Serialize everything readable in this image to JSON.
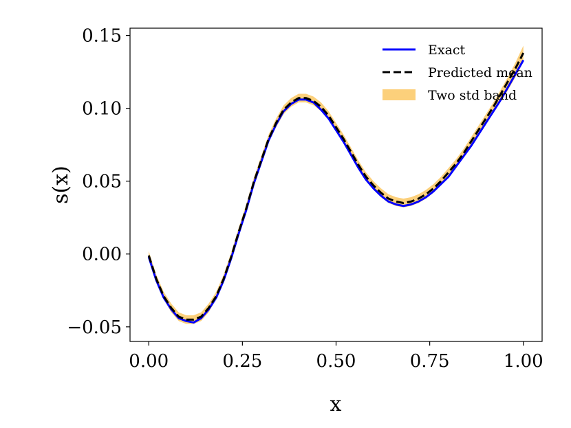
{
  "chart_data": {
    "type": "line",
    "xlabel": "x",
    "ylabel": "s(x)",
    "xlim": [
      -0.05,
      1.05
    ],
    "ylim": [
      -0.06,
      0.155
    ],
    "x_ticks": [
      0.0,
      0.25,
      0.5,
      0.75,
      1.0
    ],
    "x_tick_labels": [
      "0.00",
      "0.25",
      "0.50",
      "0.75",
      "1.00"
    ],
    "y_ticks": [
      -0.05,
      0.0,
      0.05,
      0.1,
      0.15
    ],
    "y_tick_labels": [
      "−0.05",
      "0.00",
      "0.05",
      "0.10",
      "0.15"
    ],
    "grid": false,
    "legend_position": "top-right",
    "x": [
      0.0,
      0.02,
      0.04,
      0.06,
      0.08,
      0.1,
      0.12,
      0.14,
      0.16,
      0.18,
      0.2,
      0.22,
      0.24,
      0.26,
      0.28,
      0.3,
      0.32,
      0.34,
      0.36,
      0.38,
      0.4,
      0.42,
      0.44,
      0.46,
      0.48,
      0.5,
      0.52,
      0.54,
      0.56,
      0.58,
      0.6,
      0.62,
      0.64,
      0.66,
      0.68,
      0.7,
      0.72,
      0.74,
      0.76,
      0.78,
      0.8,
      0.82,
      0.84,
      0.86,
      0.88,
      0.9,
      0.92,
      0.94,
      0.96,
      0.98,
      1.0
    ],
    "series": [
      {
        "name": "Exact",
        "color": "#0000ff",
        "style": "solid",
        "values": [
          -0.002,
          -0.018,
          -0.03,
          -0.038,
          -0.044,
          -0.046,
          -0.047,
          -0.044,
          -0.038,
          -0.03,
          -0.018,
          -0.003,
          0.014,
          0.03,
          0.048,
          0.063,
          0.078,
          0.089,
          0.098,
          0.103,
          0.106,
          0.106,
          0.104,
          0.099,
          0.093,
          0.085,
          0.077,
          0.068,
          0.059,
          0.051,
          0.045,
          0.04,
          0.036,
          0.034,
          0.033,
          0.034,
          0.036,
          0.039,
          0.043,
          0.048,
          0.053,
          0.06,
          0.067,
          0.074,
          0.082,
          0.09,
          0.098,
          0.106,
          0.115,
          0.124,
          0.133
        ]
      },
      {
        "name": "Predicted mean",
        "color": "#000000",
        "style": "dashed",
        "values": [
          -0.001,
          -0.017,
          -0.029,
          -0.037,
          -0.043,
          -0.045,
          -0.045,
          -0.043,
          -0.037,
          -0.029,
          -0.017,
          -0.002,
          0.015,
          0.031,
          0.049,
          0.064,
          0.079,
          0.09,
          0.099,
          0.104,
          0.107,
          0.107,
          0.105,
          0.101,
          0.095,
          0.087,
          0.079,
          0.07,
          0.061,
          0.053,
          0.047,
          0.042,
          0.038,
          0.036,
          0.035,
          0.036,
          0.038,
          0.041,
          0.045,
          0.05,
          0.056,
          0.062,
          0.069,
          0.077,
          0.085,
          0.093,
          0.101,
          0.11,
          0.119,
          0.128,
          0.138
        ]
      }
    ],
    "band": {
      "name": "Two std band",
      "color": "#fcc864",
      "lower": [
        -0.003,
        -0.019,
        -0.031,
        -0.04,
        -0.046,
        -0.048,
        -0.048,
        -0.046,
        -0.04,
        -0.031,
        -0.019,
        -0.004,
        0.013,
        0.029,
        0.047,
        0.062,
        0.077,
        0.087,
        0.096,
        0.101,
        0.104,
        0.104,
        0.102,
        0.098,
        0.092,
        0.084,
        0.076,
        0.067,
        0.058,
        0.05,
        0.044,
        0.039,
        0.035,
        0.033,
        0.032,
        0.033,
        0.035,
        0.038,
        0.042,
        0.047,
        0.053,
        0.059,
        0.066,
        0.073,
        0.081,
        0.089,
        0.097,
        0.105,
        0.113,
        0.122,
        0.132
      ],
      "upper": [
        0.002,
        -0.014,
        -0.026,
        -0.034,
        -0.04,
        -0.042,
        -0.042,
        -0.04,
        -0.034,
        -0.026,
        -0.014,
        0.001,
        0.018,
        0.034,
        0.052,
        0.067,
        0.082,
        0.093,
        0.102,
        0.107,
        0.11,
        0.11,
        0.108,
        0.104,
        0.098,
        0.09,
        0.082,
        0.073,
        0.064,
        0.056,
        0.05,
        0.045,
        0.041,
        0.039,
        0.038,
        0.039,
        0.041,
        0.044,
        0.048,
        0.053,
        0.059,
        0.065,
        0.072,
        0.08,
        0.088,
        0.096,
        0.104,
        0.113,
        0.122,
        0.132,
        0.143
      ]
    }
  }
}
